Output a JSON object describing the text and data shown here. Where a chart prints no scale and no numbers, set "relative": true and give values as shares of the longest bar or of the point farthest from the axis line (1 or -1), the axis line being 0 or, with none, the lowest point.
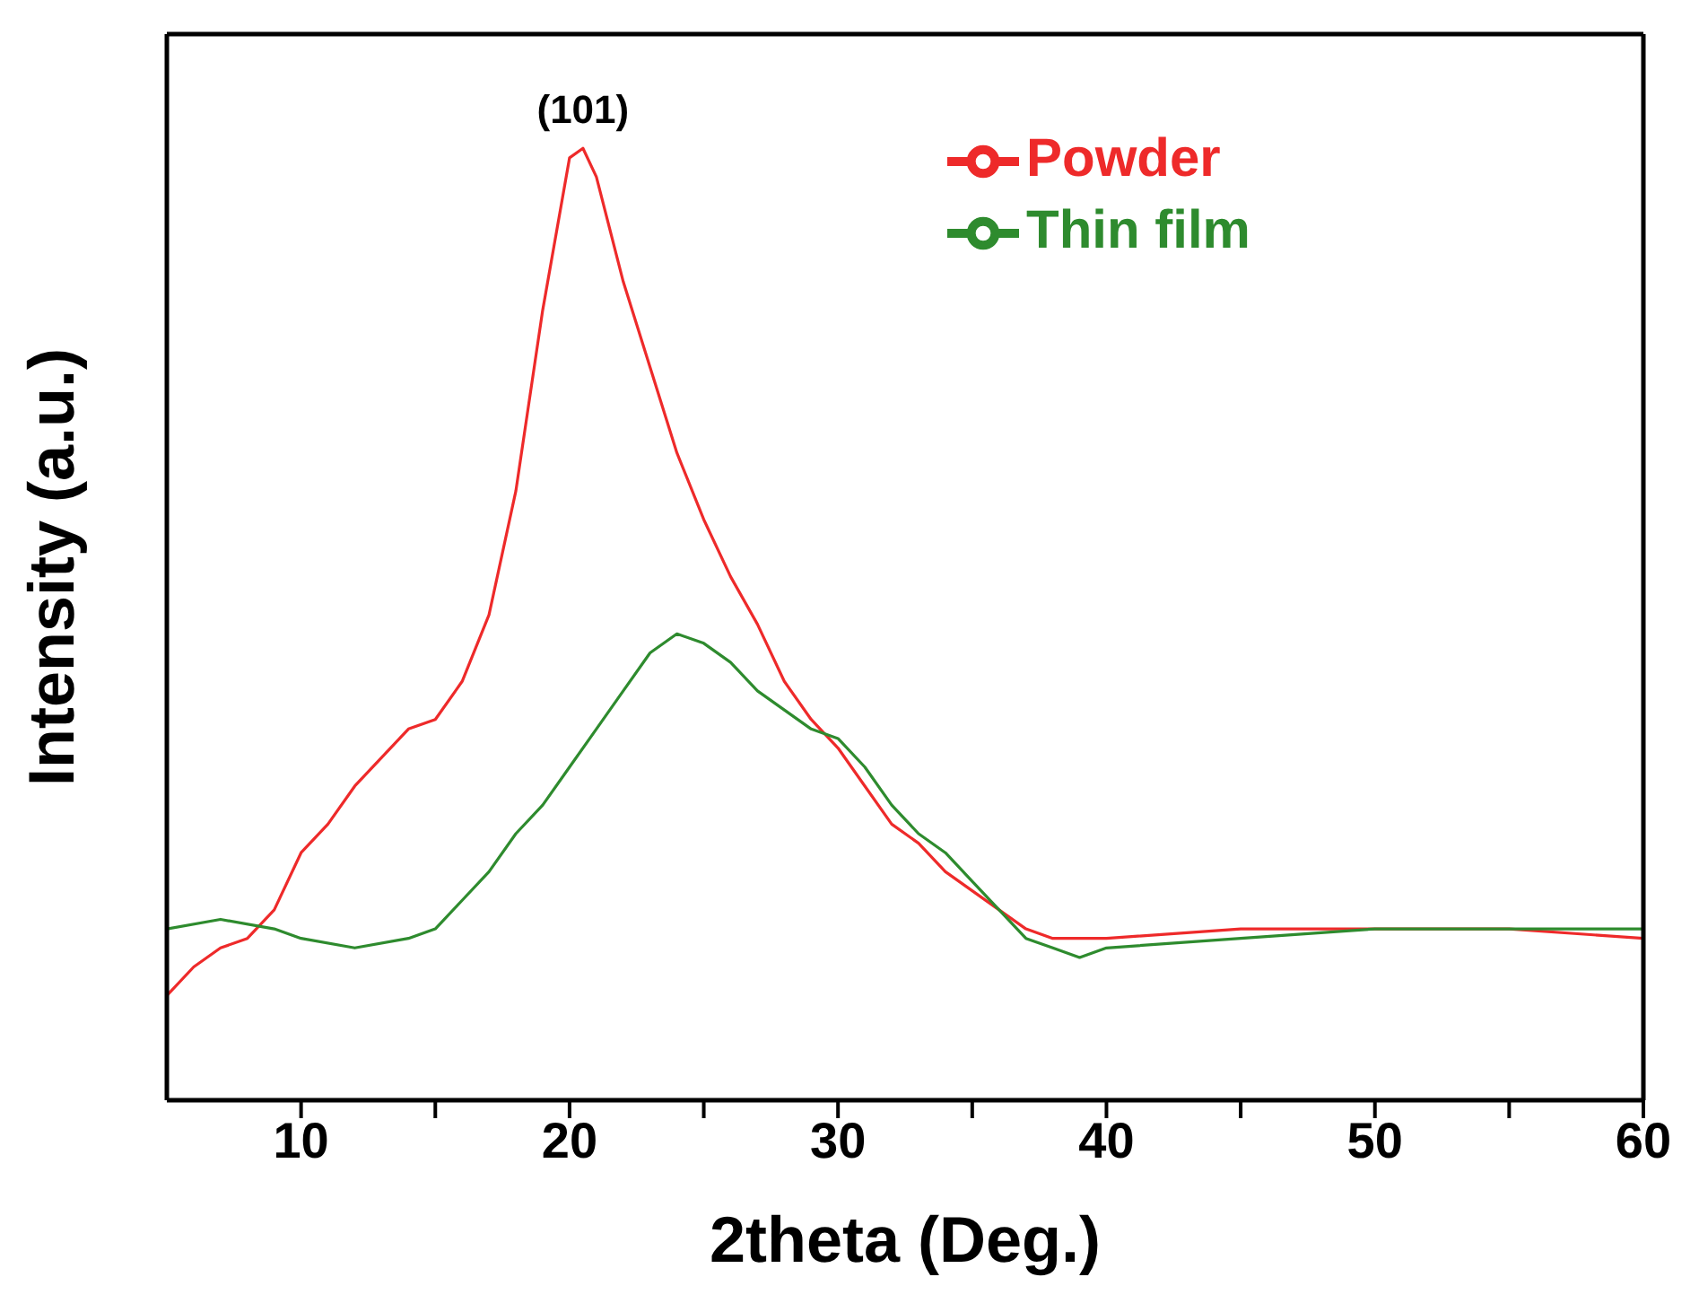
{
  "chart_data": {
    "type": "line",
    "relative": true,
    "xlabel": "2theta (Deg.)",
    "ylabel": "Intensity (a.u.)",
    "xlim": [
      5,
      60
    ],
    "xticks": [
      10,
      {
        "value": 15,
        "label": null
      },
      20,
      {
        "value": 25,
        "label": null
      },
      30,
      {
        "value": 35,
        "label": null
      },
      40,
      {
        "value": 45,
        "label": null
      },
      50,
      {
        "value": 55,
        "label": null
      },
      60
    ],
    "legend": "top right",
    "marker": "none",
    "line_style": "solid",
    "annotations": [
      {
        "text": "(101)",
        "x": 20.5,
        "y": 1
      }
    ],
    "series": [
      {
        "name": "Powder",
        "color": "#ee2a2a",
        "x": [
          5,
          6,
          7,
          8,
          9,
          10,
          11,
          12,
          13,
          14,
          15,
          16,
          17,
          18,
          19,
          20,
          20.5,
          21,
          22,
          23,
          24,
          25,
          26,
          27,
          28,
          29,
          30,
          31,
          32,
          33,
          34,
          35,
          36,
          37,
          38,
          39,
          40,
          45,
          50,
          55,
          60
        ],
        "values": [
          0.11,
          0.14,
          0.16,
          0.17,
          0.2,
          0.26,
          0.29,
          0.33,
          0.36,
          0.39,
          0.4,
          0.44,
          0.51,
          0.64,
          0.83,
          0.99,
          1,
          0.97,
          0.86,
          0.77,
          0.68,
          0.61,
          0.55,
          0.5,
          0.44,
          0.4,
          0.37,
          0.33,
          0.29,
          0.27,
          0.24,
          0.22,
          0.2,
          0.18,
          0.17,
          0.17,
          0.17,
          0.18,
          0.18,
          0.18,
          0.17
        ]
      },
      {
        "name": "Thin film",
        "color": "#2e8b2e",
        "x": [
          5,
          7,
          9,
          10,
          12,
          14,
          15,
          16,
          17,
          18,
          19,
          20,
          21,
          22,
          23,
          24,
          25,
          26,
          27,
          28,
          29,
          30,
          31,
          32,
          33,
          34,
          35,
          36,
          37,
          38,
          39,
          40,
          45,
          50,
          55,
          60
        ],
        "values": [
          0.18,
          0.19,
          0.18,
          0.17,
          0.16,
          0.17,
          0.18,
          0.21,
          0.24,
          0.28,
          0.31,
          0.35,
          0.39,
          0.43,
          0.47,
          0.49,
          0.48,
          0.46,
          0.43,
          0.41,
          0.39,
          0.38,
          0.35,
          0.31,
          0.28,
          0.26,
          0.23,
          0.2,
          0.17,
          0.16,
          0.15,
          0.16,
          0.17,
          0.18,
          0.18,
          0.18
        ]
      }
    ]
  }
}
